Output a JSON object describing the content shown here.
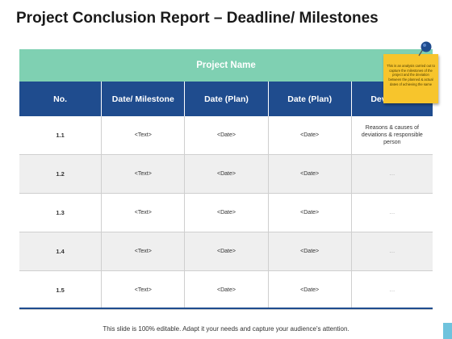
{
  "title": "Project Conclusion Report – Deadline/ Milestones",
  "table": {
    "project_name": "Project Name",
    "headers": [
      "No.",
      "Date/ Milestone",
      "Date (Plan)",
      "Date (Plan)",
      "Deviations"
    ],
    "rows": [
      [
        "1.1",
        "<Text>",
        "<Date>",
        "<Date>",
        "Reasons & causes of deviations & responsible person"
      ],
      [
        "1.2",
        "<Text>",
        "<Date>",
        "<Date>",
        "…"
      ],
      [
        "1.3",
        "<Text>",
        "<Date>",
        "<Date>",
        "…"
      ],
      [
        "1.4",
        "<Text>",
        "<Date>",
        "<Date>",
        "…"
      ],
      [
        "1.5",
        "<Text>",
        "<Date>",
        "<Date>",
        "…"
      ]
    ]
  },
  "sticky_note": {
    "text": "This is an analysis carried out to capture the milestones of the project and the deviation between the planned & actual dates of achieving the same",
    "color": "#f7c52c"
  },
  "colors": {
    "accent_green": "#7fd0b2",
    "header_blue": "#1f4c8e",
    "corner": "#6fc3dd"
  },
  "footer": "This slide is 100% editable. Adapt it your needs and capture your audience's attention."
}
